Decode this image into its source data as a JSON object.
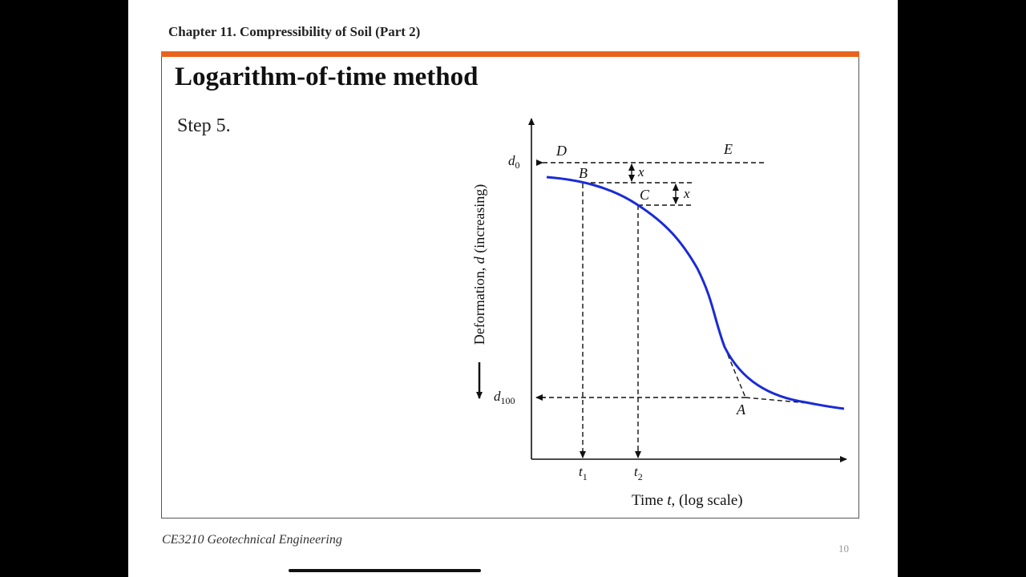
{
  "header": {
    "chapter": "Chapter 11. Compressibility of Soil (Part 2)"
  },
  "slide": {
    "title": "Logarithm-of-time method",
    "step": "Step 5."
  },
  "footer": {
    "course": "CE3210 Geotechnical Engineering",
    "page": "10"
  },
  "colors": {
    "accent": "#e8641e",
    "curve": "#1a2bd6"
  },
  "chart_data": {
    "type": "line",
    "xlabel_prefix": "Time ",
    "xlabel_var": "t",
    "xlabel_suffix": ", (log scale)",
    "ylabel_prefix": "Deformation, ",
    "ylabel_var": "d",
    "ylabel_suffix": " (increasing)",
    "y_ticks": [
      {
        "base": "d",
        "sub": "0"
      },
      {
        "base": "d",
        "sub": "100"
      }
    ],
    "x_ticks": [
      {
        "base": "t",
        "sub": "1"
      },
      {
        "base": "t",
        "sub": "2"
      }
    ],
    "point_labels": [
      "D",
      "E",
      "B",
      "C",
      "A"
    ],
    "offset_label": "x",
    "y_direction": "increasing downward",
    "x_scale": "log"
  }
}
